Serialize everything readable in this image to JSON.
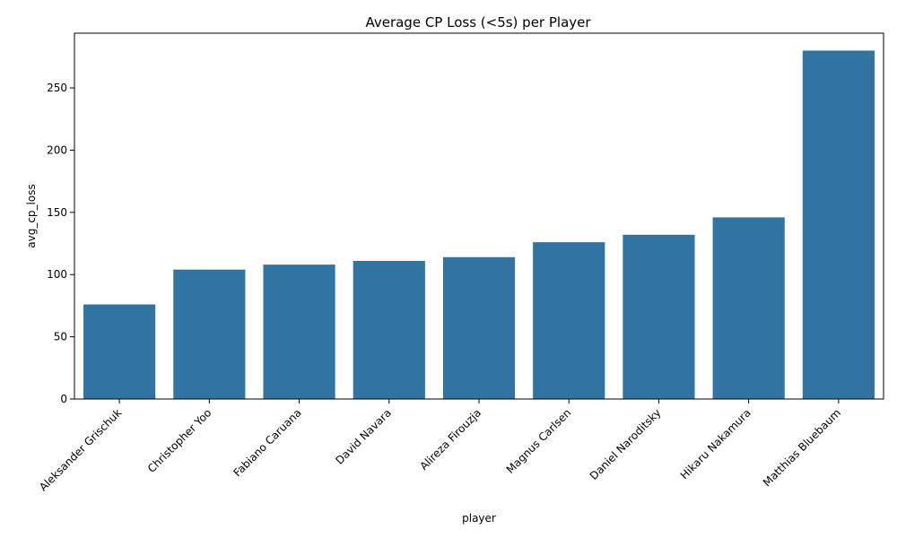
{
  "chart_data": {
    "type": "bar",
    "title": "Average CP Loss (<5s) per Player",
    "xlabel": "player",
    "ylabel": "avg_cp_loss",
    "categories": [
      "Aleksander Grischuk",
      "Christopher Yoo",
      "Fabiano Caruana",
      "David Navara",
      "Alireza Firouzja",
      "Magnus Carlsen",
      "Daniel Naroditsky",
      "Hikaru Nakamura",
      "Matthias Bluebaum"
    ],
    "values": [
      76,
      104,
      108,
      111,
      114,
      126,
      132,
      146,
      280
    ],
    "ylim": [
      0,
      294
    ],
    "yticks": [
      0,
      50,
      100,
      150,
      200,
      250
    ],
    "grid": false,
    "bar_color": "#3274a1"
  }
}
